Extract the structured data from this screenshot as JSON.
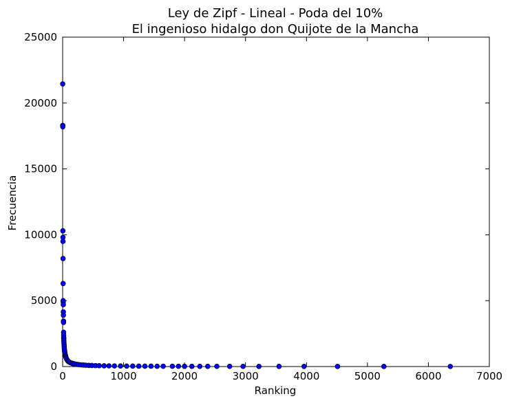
{
  "chart_data": {
    "type": "scatter",
    "title": "Ley de Zipf - Lineal - Poda del 10%",
    "subtitle": "El ingenioso hidalgo don Quijote de la Mancha",
    "xlabel": "Ranking",
    "ylabel": "Frecuencia",
    "xlim": [
      0,
      7000
    ],
    "ylim": [
      0,
      25000
    ],
    "xticks": [
      "0",
      "1000",
      "2000",
      "3000",
      "4000",
      "5000",
      "6000",
      "7000"
    ],
    "yticks": [
      "0",
      "5000",
      "10000",
      "15000",
      "20000",
      "25000"
    ],
    "grid": false,
    "legend": "none",
    "marker_color": "#0000ff",
    "marker_edge_color": "#000000",
    "series": [
      {
        "x": [
          1,
          2,
          3,
          4,
          5,
          6,
          7,
          8,
          9,
          10,
          11,
          12,
          13,
          14,
          15,
          16,
          17,
          18,
          19,
          20,
          22,
          24,
          26,
          28,
          30,
          33,
          36,
          40,
          45,
          50,
          55,
          60,
          70,
          80,
          90,
          100,
          120,
          140,
          160,
          180,
          200,
          230,
          260,
          300,
          340,
          380,
          430,
          480,
          540,
          600,
          680,
          760,
          850,
          950,
          1050,
          1150,
          1250,
          1350,
          1450,
          1550,
          1650,
          1800,
          1900,
          2000,
          2120,
          2250,
          2380,
          2530,
          2740,
          2960,
          3220,
          3550,
          3960,
          4510,
          5270,
          6360
        ],
        "y": [
          21450,
          18300,
          18200,
          10300,
          9800,
          9500,
          8200,
          6300,
          5000,
          4900,
          4700,
          4150,
          3900,
          3450,
          3350,
          2600,
          2400,
          2200,
          2100,
          1950,
          1800,
          1650,
          1500,
          1380,
          1250,
          1150,
          1050,
          950,
          850,
          760,
          690,
          620,
          530,
          460,
          410,
          370,
          310,
          270,
          240,
          210,
          190,
          170,
          150,
          130,
          115,
          100,
          90,
          80,
          72,
          65,
          58,
          52,
          46,
          41,
          37,
          34,
          31,
          29,
          27,
          25,
          23,
          21,
          20,
          19,
          18,
          17,
          16,
          15,
          14,
          13,
          12,
          11,
          10,
          9,
          8,
          7
        ]
      }
    ]
  }
}
